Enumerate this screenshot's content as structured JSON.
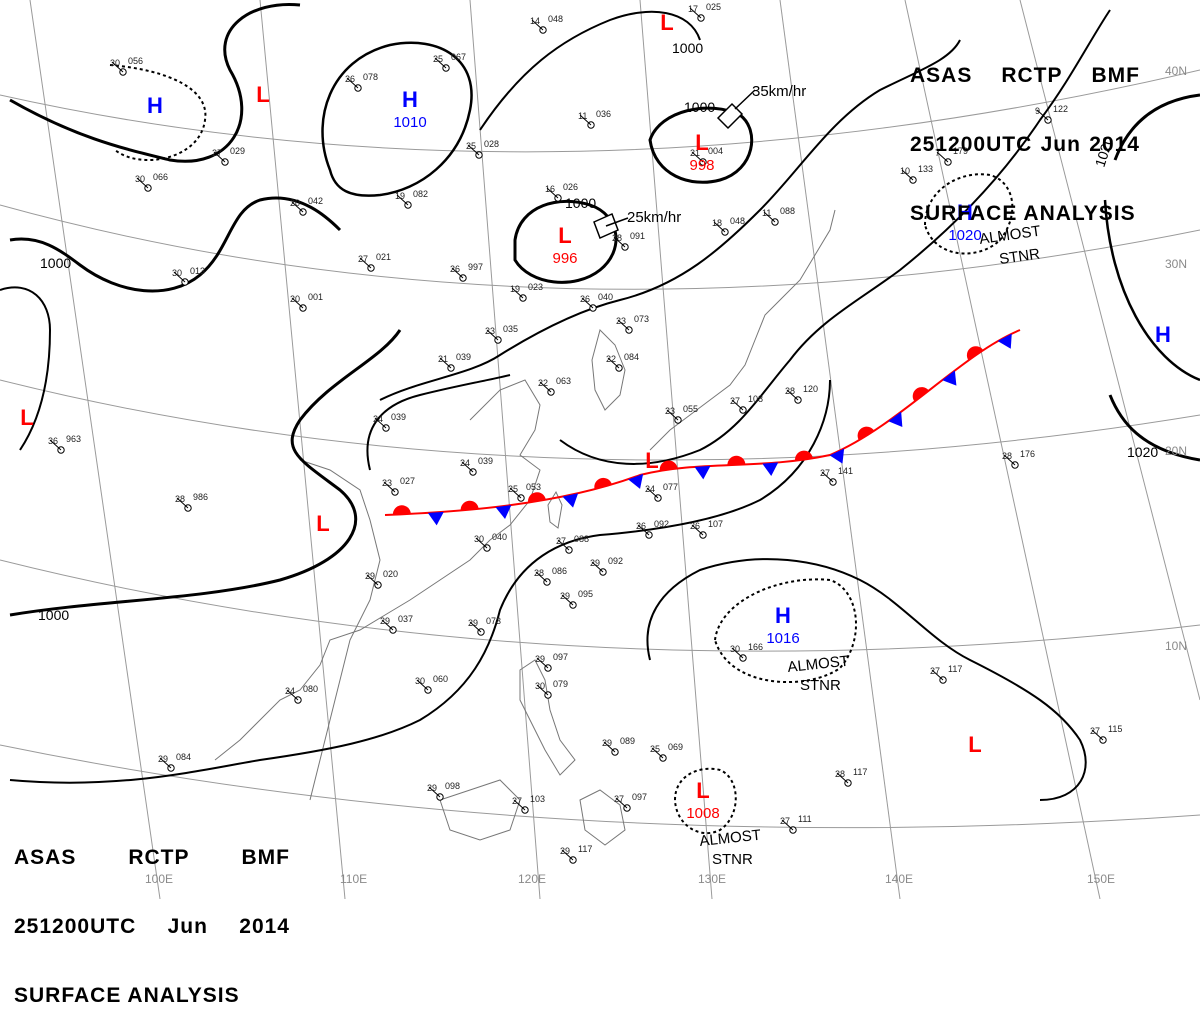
{
  "header": {
    "center": "ASAS",
    "station": "RCTP",
    "office": "BMF",
    "datetime": "251200UTC",
    "month": "Jun",
    "year": "2014",
    "product": "SURFACE ANALYSIS"
  },
  "colors": {
    "high": "#0000ff",
    "low": "#ff0000",
    "isobar": "#000000",
    "coast": "#777777",
    "graticule": "#9a9a9a"
  },
  "graticule": {
    "lon_labels": [
      "100E",
      "110E",
      "120E",
      "130E",
      "140E",
      "150E"
    ],
    "lat_labels": [
      "10N",
      "20N",
      "30N",
      "40N"
    ]
  },
  "isobars": [
    {
      "value": "1000"
    },
    {
      "value": "1000"
    },
    {
      "value": "1000"
    },
    {
      "value": "1000"
    },
    {
      "value": "1020"
    },
    {
      "value": "1020"
    }
  ],
  "pressure_centers": [
    {
      "type": "H",
      "value": ""
    },
    {
      "type": "L",
      "value": ""
    },
    {
      "type": "H",
      "value": "1010"
    },
    {
      "type": "L",
      "value": "998"
    },
    {
      "type": "L",
      "value": "996"
    },
    {
      "type": "L",
      "value": ""
    },
    {
      "type": "H",
      "value": "1020"
    },
    {
      "type": "H",
      "value": ""
    },
    {
      "type": "L",
      "value": ""
    },
    {
      "type": "L",
      "value": ""
    },
    {
      "type": "L",
      "value": ""
    },
    {
      "type": "H",
      "value": "1016"
    },
    {
      "type": "L",
      "value": ""
    },
    {
      "type": "L",
      "value": "1008"
    }
  ],
  "annotations": {
    "almost_stnr": [
      "ALMOST",
      "STNR"
    ],
    "motion_1": "35km/hr",
    "motion_2": "25km/hr"
  },
  "front": {
    "type": "stationary"
  },
  "station_plots": [
    {
      "t": "30",
      "p": "056"
    },
    {
      "t": "26",
      "p": "078"
    },
    {
      "t": "25",
      "p": "067"
    },
    {
      "t": "14",
      "p": "048"
    },
    {
      "t": "17",
      "p": "025"
    },
    {
      "t": "27",
      "p": "029"
    },
    {
      "t": "25",
      "p": "028"
    },
    {
      "t": "11",
      "p": "036"
    },
    {
      "t": "21",
      "p": "004"
    },
    {
      "t": "30",
      "p": "066"
    },
    {
      "t": "20",
      "p": "042"
    },
    {
      "t": "19",
      "p": "082"
    },
    {
      "t": "16",
      "p": "026"
    },
    {
      "t": "28",
      "p": "091"
    },
    {
      "t": "18",
      "p": "048"
    },
    {
      "t": "11",
      "p": "088"
    },
    {
      "t": "9",
      "p": "122"
    },
    {
      "t": "10",
      "p": "133"
    },
    {
      "t": "7",
      "p": "179"
    },
    {
      "t": "27",
      "p": "021"
    },
    {
      "t": "26",
      "p": "997"
    },
    {
      "t": "30",
      "p": "013"
    },
    {
      "t": "19",
      "p": "023"
    },
    {
      "t": "26",
      "p": "040"
    },
    {
      "t": "20",
      "p": "001"
    },
    {
      "t": "23",
      "p": "035"
    },
    {
      "t": "23",
      "p": "073"
    },
    {
      "t": "21",
      "p": "039"
    },
    {
      "t": "22",
      "p": "084"
    },
    {
      "t": "22",
      "p": "063"
    },
    {
      "t": "23",
      "p": "055"
    },
    {
      "t": "27",
      "p": "108"
    },
    {
      "t": "28",
      "p": "120"
    },
    {
      "t": "24",
      "p": "039"
    },
    {
      "t": "36",
      "p": "963"
    },
    {
      "t": "23",
      "p": "027"
    },
    {
      "t": "24",
      "p": "039"
    },
    {
      "t": "25",
      "p": "053"
    },
    {
      "t": "24",
      "p": "077"
    },
    {
      "t": "27",
      "p": "141"
    },
    {
      "t": "28",
      "p": "176"
    },
    {
      "t": "28",
      "p": "986"
    },
    {
      "t": "30",
      "p": "040"
    },
    {
      "t": "27",
      "p": "088"
    },
    {
      "t": "26",
      "p": "092"
    },
    {
      "t": "26",
      "p": "107"
    },
    {
      "t": "29",
      "p": "020"
    },
    {
      "t": "28",
      "p": "086"
    },
    {
      "t": "29",
      "p": "092"
    },
    {
      "t": "29",
      "p": "095"
    },
    {
      "t": "29",
      "p": "037"
    },
    {
      "t": "29",
      "p": "073"
    },
    {
      "t": "30",
      "p": "166"
    },
    {
      "t": "29",
      "p": "097"
    },
    {
      "t": "30",
      "p": "060"
    },
    {
      "t": "24",
      "p": "080"
    },
    {
      "t": "30",
      "p": "079"
    },
    {
      "t": "27",
      "p": "117"
    },
    {
      "t": "29",
      "p": "084"
    },
    {
      "t": "29",
      "p": "089"
    },
    {
      "t": "25",
      "p": "069"
    },
    {
      "t": "29",
      "p": "098"
    },
    {
      "t": "27",
      "p": "103"
    },
    {
      "t": "27",
      "p": "097"
    },
    {
      "t": "28",
      "p": "117"
    },
    {
      "t": "27",
      "p": "111"
    },
    {
      "t": "27",
      "p": "115"
    },
    {
      "t": "29",
      "p": "117"
    }
  ]
}
